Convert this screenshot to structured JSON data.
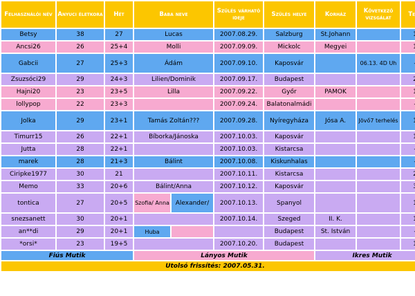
{
  "headers": [
    "Felhasználói név",
    "Anyuci életkora",
    "Hét",
    "Baba neve",
    "Szülés várható ideje",
    "Szülés helye",
    "Korház",
    "Következő vizsgálat",
    "Tesó"
  ],
  "rows": [
    {
      "type": "blue",
      "user": "Betsy",
      "age": "38",
      "week": "27",
      "baby": "Lucas",
      "date": "2007.08.29.",
      "place": "Salzburg",
      "hospital": "St.Johann",
      "next": "",
      "sibling": "1"
    },
    {
      "type": "pink",
      "user": "Ancsi26",
      "age": "26",
      "week": "25+4",
      "baby": "Molli",
      "date": "2007.09.09.",
      "place": "Mickolc",
      "hospital": "Megyei",
      "next": "",
      "sibling": "1"
    },
    {
      "type": "blue",
      "user": "Gabcii",
      "age": "27",
      "week": "25+3",
      "baby": "Ádám",
      "date": "2007.09.10.",
      "place": "Kaposvár",
      "hospital": "",
      "next": "06.13. 4D Uh",
      "sibling": "-"
    },
    {
      "type": "lilac",
      "user": "Zsuzsóci29",
      "age": "29",
      "week": "24+3",
      "baby": "Lilien/Dominik",
      "date": "2007.09.17.",
      "place": "Budapest",
      "hospital": "",
      "next": "",
      "sibling": "2"
    },
    {
      "type": "pink",
      "user": "Hajni20",
      "age": "23",
      "week": "23+5",
      "baby": "Lilla",
      "date": "2007.09.22.",
      "place": "Győr",
      "hospital": "PAMOK",
      "next": "",
      "sibling": "1"
    },
    {
      "type": "pink",
      "user": "lollypop",
      "age": "22",
      "week": "23+3",
      "baby": "",
      "date": "2007.09.24.",
      "place": "Balatonalmádi",
      "hospital": "",
      "next": "",
      "sibling": "-"
    },
    {
      "type": "blue",
      "user": "Jolka",
      "age": "29",
      "week": "23+1",
      "baby": "Tamás Zoltán???",
      "date": "2007.09.28.",
      "place": "Nyíregyháza",
      "hospital": "Jósa A.",
      "next": "Jövő7 terhelés",
      "sibling": "1"
    },
    {
      "type": "lilac",
      "user": "Timurr15",
      "age": "26",
      "week": "22+1",
      "baby": "Bíborka/Jánoska",
      "date": "2007.10.03.",
      "place": "Kaposvár",
      "hospital": "",
      "next": "",
      "sibling": "1"
    },
    {
      "type": "lilac",
      "user": "Jutta",
      "age": "28",
      "week": "22+1",
      "baby": "",
      "date": "2007.10.03.",
      "place": "Kistarcsa",
      "hospital": "",
      "next": "",
      "sibling": "-"
    },
    {
      "type": "blue",
      "user": "marek",
      "age": "28",
      "week": "21+3",
      "baby": "Bálint",
      "date": "2007.10.08.",
      "place": "Kiskunhalas",
      "hospital": "",
      "next": "",
      "sibling": "-"
    },
    {
      "type": "lilac",
      "user": "Ciripke1977",
      "age": "30",
      "week": "21",
      "baby": "",
      "date": "2007.10.11.",
      "place": "Kistarcsa",
      "hospital": "",
      "next": "",
      "sibling": "2"
    },
    {
      "type": "lilac",
      "user": "Memo",
      "age": "33",
      "week": "20+6",
      "baby": "Bálint/Anna",
      "date": "2007.10.12.",
      "place": "Kaposvár",
      "hospital": "",
      "next": "",
      "sibling": "3"
    },
    {
      "type": "lilac",
      "user": "tontica",
      "age": "27",
      "week": "20+5",
      "baby": "",
      "baby_a": "Szofia/ Anna",
      "baby_b": "Alexander/",
      "date": "2007.10.13.",
      "place": "Spanyol",
      "hospital": "",
      "next": "",
      "sibling": "1"
    },
    {
      "type": "lilac",
      "user": "snezsanett",
      "age": "30",
      "week": "20+1",
      "baby": "",
      "date": "2007.10.14.",
      "place": "Szeged",
      "hospital": "II. K.",
      "next": "",
      "sibling": "1"
    },
    {
      "type": "lilac",
      "user": "an**di",
      "age": "29",
      "week": "20+1",
      "baby": "",
      "baby_a": "Huba",
      "baby_b": "",
      "date": "",
      "place": "Budapest",
      "hospital": "St. István",
      "next": "",
      "sibling": "-"
    },
    {
      "type": "lilac",
      "user": "*orsi*",
      "age": "23",
      "week": "19+5",
      "baby": "",
      "date": "2007.10.20.",
      "place": "Budapest",
      "hospital": "",
      "next": "",
      "sibling": "1"
    }
  ],
  "legend": {
    "boy": "Fiús Mutik",
    "girl": "Lányos Mutik",
    "twin": "Ikres Mutik"
  },
  "footer": "Utolsó frissítés: 2007.05.31.",
  "colors": {
    "header": "#fcc600",
    "blue": "#5fa8f0",
    "pink": "#f7aad0",
    "lilac": "#c9aaf2"
  }
}
